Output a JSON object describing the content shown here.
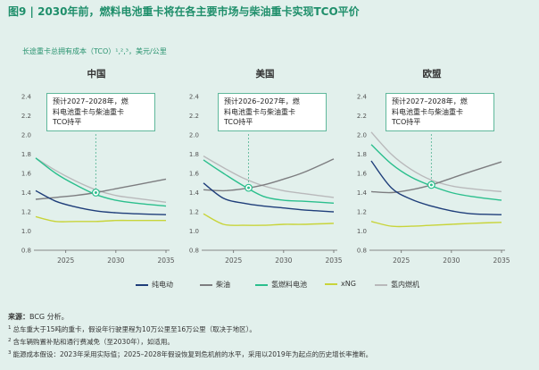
{
  "figure_title": "图9 | 2030年前，燃料电池重卡将在各主要市场与柴油重卡实现TCO平价",
  "subtitle": "长途重卡总拥有成本（TCO）¹,²,³，美元/公里",
  "colors": {
    "纯电动": "#1f3e7a",
    "柴油": "#7d7d80",
    "氢燃料电池": "#2bbf8d",
    "xNG": "#c8d43a",
    "氢内燃机": "#b9b9bb",
    "accent": "#1f8f6b"
  },
  "legend": [
    "纯电动",
    "柴油",
    "氢燃料电池",
    "xNG",
    "氢内燃机"
  ],
  "chart_data": [
    {
      "type": "line",
      "title": "中国",
      "xlim": [
        2022,
        2035
      ],
      "ylim": [
        0.8,
        2.4
      ],
      "yticks": [
        "0.8",
        "1.0",
        "1.2",
        "1.4",
        "1.6",
        "1.8",
        "2.0",
        "2.2",
        "2.4"
      ],
      "xticks": [
        "2025",
        "2030",
        "2035"
      ],
      "x": [
        2022,
        2024,
        2026,
        2028,
        2030,
        2032,
        2035
      ],
      "series": [
        {
          "name": "纯电动",
          "values": [
            1.42,
            1.31,
            1.25,
            1.21,
            1.19,
            1.18,
            1.17
          ]
        },
        {
          "name": "柴油",
          "values": [
            1.33,
            1.35,
            1.37,
            1.4,
            1.44,
            1.48,
            1.54
          ]
        },
        {
          "name": "氢燃料电池",
          "values": [
            1.76,
            1.6,
            1.48,
            1.38,
            1.32,
            1.29,
            1.26
          ]
        },
        {
          "name": "xNG",
          "values": [
            1.15,
            1.1,
            1.1,
            1.1,
            1.11,
            1.11,
            1.11
          ]
        },
        {
          "name": "氢内燃机",
          "values": [
            1.76,
            1.63,
            1.52,
            1.43,
            1.37,
            1.34,
            1.3
          ]
        }
      ],
      "annotation": {
        "lines": [
          "预计2027–2028年，燃",
          "料电池重卡与柴油重卡",
          "TCO持平"
        ],
        "x": 2028,
        "y": 1.4
      }
    },
    {
      "type": "line",
      "title": "美国",
      "xlim": [
        2022,
        2035
      ],
      "ylim": [
        0.8,
        2.4
      ],
      "yticks": [
        "0.8",
        "1.0",
        "1.2",
        "1.4",
        "1.6",
        "1.8",
        "2.0",
        "2.2",
        "2.4"
      ],
      "xticks": [
        "2025",
        "2030",
        "2035"
      ],
      "x": [
        2022,
        2024,
        2026,
        2028,
        2030,
        2032,
        2035
      ],
      "series": [
        {
          "name": "纯电动",
          "values": [
            1.5,
            1.34,
            1.29,
            1.26,
            1.24,
            1.22,
            1.2
          ]
        },
        {
          "name": "柴油",
          "values": [
            1.43,
            1.42,
            1.44,
            1.48,
            1.54,
            1.61,
            1.75
          ]
        },
        {
          "name": "氢燃料电池",
          "values": [
            1.74,
            1.6,
            1.47,
            1.36,
            1.32,
            1.31,
            1.29
          ]
        },
        {
          "name": "xNG",
          "values": [
            1.18,
            1.07,
            1.06,
            1.06,
            1.07,
            1.07,
            1.08
          ]
        },
        {
          "name": "氢内燃机",
          "values": [
            1.78,
            1.66,
            1.55,
            1.47,
            1.42,
            1.39,
            1.35
          ]
        }
      ],
      "annotation": {
        "lines": [
          "预计2026–2027年，燃",
          "料电池重卡与柴油重卡",
          "TCO持平"
        ],
        "x": 2026.5,
        "y": 1.45
      }
    },
    {
      "type": "line",
      "title": "欧盟",
      "xlim": [
        2022,
        2035
      ],
      "ylim": [
        0.8,
        2.4
      ],
      "yticks": [
        "0.8",
        "1.0",
        "1.2",
        "1.4",
        "1.6",
        "1.8",
        "2.0",
        "2.2",
        "2.4"
      ],
      "xticks": [
        "2025",
        "2030",
        "2035"
      ],
      "x": [
        2022,
        2024,
        2026,
        2028,
        2030,
        2032,
        2035
      ],
      "series": [
        {
          "name": "纯电动",
          "values": [
            1.73,
            1.45,
            1.33,
            1.26,
            1.21,
            1.18,
            1.17
          ]
        },
        {
          "name": "柴油",
          "values": [
            1.41,
            1.4,
            1.43,
            1.48,
            1.55,
            1.62,
            1.72
          ]
        },
        {
          "name": "氢燃料电池",
          "values": [
            1.9,
            1.7,
            1.56,
            1.47,
            1.4,
            1.36,
            1.32
          ]
        },
        {
          "name": "xNG",
          "values": [
            1.1,
            1.05,
            1.05,
            1.06,
            1.07,
            1.08,
            1.09
          ]
        },
        {
          "name": "氢内燃机",
          "values": [
            2.03,
            1.8,
            1.64,
            1.53,
            1.47,
            1.44,
            1.41
          ]
        }
      ],
      "annotation": {
        "lines": [
          "预计2027–2028年，燃",
          "料电池重卡与柴油重卡",
          "TCO持平"
        ],
        "x": 2028,
        "y": 1.48
      }
    }
  ],
  "source": {
    "label": "来源：",
    "text": "BCG 分析。"
  },
  "footnotes": [
    {
      "num": "1",
      "text": "总车重大于15吨的重卡，假设年行驶里程为10万公里至16万公里（取决于地区）。"
    },
    {
      "num": "2",
      "text": "含车辆购置补贴和通行费减免（至2030年），如适用。"
    },
    {
      "num": "3",
      "text": "能源成本假设：2023年采用实际值；2025–2028年假设恢复到危机前的水平，采用以2019年为起点的历史增长率推断。"
    }
  ]
}
